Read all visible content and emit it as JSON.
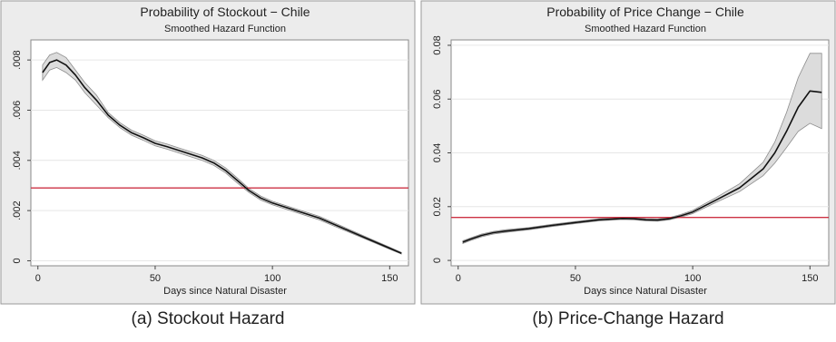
{
  "chart_data": [
    {
      "type": "line",
      "title": "Probability of Stockout − Chile",
      "subtitle": "Smoothed Hazard Function",
      "xlabel": "Days since Natural Disaster",
      "ylabel": "",
      "xlim": [
        -3,
        158
      ],
      "ylim": [
        -0.0002,
        0.0088
      ],
      "xticks": [
        0,
        50,
        100,
        150
      ],
      "xtick_labels": [
        "0",
        "50",
        "100",
        "150"
      ],
      "yticks": [
        0,
        0.002,
        0.004,
        0.006,
        0.008
      ],
      "ytick_labels": [
        "0",
        ".002",
        ".004",
        ".006",
        ".008"
      ],
      "grid": true,
      "reference_line": 0.0029,
      "series": [
        {
          "x": [
            2,
            5,
            8,
            12,
            16,
            20,
            25,
            30,
            35,
            40,
            45,
            50,
            55,
            60,
            65,
            70,
            75,
            80,
            85,
            90,
            95,
            100,
            110,
            120,
            130,
            140,
            150,
            155
          ],
          "y": [
            0.0075,
            0.0079,
            0.008,
            0.0078,
            0.0074,
            0.0069,
            0.0064,
            0.0058,
            0.0054,
            0.0051,
            0.0049,
            0.00468,
            0.00455,
            0.0044,
            0.00425,
            0.0041,
            0.0039,
            0.0036,
            0.0032,
            0.0028,
            0.0025,
            0.0023,
            0.002,
            0.0017,
            0.0013,
            0.0009,
            0.0005,
            0.0003
          ],
          "lower": [
            0.0072,
            0.0076,
            0.0077,
            0.0075,
            0.0072,
            0.0067,
            0.0062,
            0.0057,
            0.0053,
            0.005,
            0.0048,
            0.00458,
            0.00445,
            0.0043,
            0.00415,
            0.004,
            0.0038,
            0.0035,
            0.0031,
            0.00272,
            0.00242,
            0.00223,
            0.00193,
            0.00163,
            0.00124,
            0.00085,
            0.00046,
            0.00027
          ],
          "upper": [
            0.0078,
            0.0082,
            0.0083,
            0.0081,
            0.0076,
            0.0071,
            0.0066,
            0.0059,
            0.0055,
            0.0052,
            0.005,
            0.00478,
            0.00465,
            0.0045,
            0.00435,
            0.0042,
            0.004,
            0.0037,
            0.0033,
            0.00288,
            0.00258,
            0.00237,
            0.00207,
            0.00177,
            0.00136,
            0.00095,
            0.00054,
            0.00033
          ]
        }
      ],
      "colors": {
        "line": "#111111",
        "band": "#dcdcdc",
        "band_edge": "#8c8c8c",
        "reference": "#cc3344",
        "grid": "#e6e6e6",
        "frame": "#8a8a8a"
      },
      "caption": "(a) Stockout Hazard"
    },
    {
      "type": "line",
      "title": "Probability of Price Change − Chile",
      "subtitle": "Smoothed Hazard Function",
      "xlabel": "Days since Natural Disaster",
      "ylabel": "",
      "xlim": [
        -3,
        158
      ],
      "ylim": [
        -0.002,
        0.082
      ],
      "xticks": [
        0,
        50,
        100,
        150
      ],
      "xtick_labels": [
        "0",
        "50",
        "100",
        "150"
      ],
      "yticks": [
        0,
        0.02,
        0.04,
        0.06,
        0.08
      ],
      "ytick_labels": [
        "0",
        "0.02",
        "0.04",
        "0.06",
        "0.08"
      ],
      "grid": true,
      "reference_line": 0.016,
      "series": [
        {
          "x": [
            2,
            5,
            10,
            15,
            20,
            30,
            40,
            50,
            60,
            70,
            75,
            80,
            85,
            90,
            95,
            100,
            110,
            120,
            130,
            135,
            140,
            145,
            150,
            155
          ],
          "y": [
            0.0068,
            0.0078,
            0.0093,
            0.0103,
            0.0109,
            0.0118,
            0.013,
            0.0141,
            0.0151,
            0.0156,
            0.0155,
            0.0151,
            0.015,
            0.0155,
            0.0166,
            0.018,
            0.0225,
            0.027,
            0.034,
            0.04,
            0.048,
            0.057,
            0.063,
            0.0625
          ],
          "lower": [
            0.0063,
            0.0073,
            0.0088,
            0.0098,
            0.0104,
            0.0114,
            0.0126,
            0.0137,
            0.0147,
            0.0152,
            0.0151,
            0.0147,
            0.0146,
            0.0151,
            0.0161,
            0.0174,
            0.0216,
            0.0256,
            0.0315,
            0.0362,
            0.042,
            0.048,
            0.051,
            0.049
          ],
          "upper": [
            0.0073,
            0.0083,
            0.0098,
            0.0108,
            0.0114,
            0.0122,
            0.0134,
            0.0145,
            0.0155,
            0.016,
            0.0159,
            0.0155,
            0.0154,
            0.0159,
            0.0171,
            0.0186,
            0.0234,
            0.0285,
            0.0365,
            0.044,
            0.055,
            0.068,
            0.077,
            0.077
          ]
        }
      ],
      "colors": {
        "line": "#111111",
        "band": "#dcdcdc",
        "band_edge": "#8c8c8c",
        "reference": "#cc3344",
        "grid": "#e6e6e6",
        "frame": "#8a8a8a"
      },
      "caption": "(b) Price-Change Hazard"
    }
  ]
}
